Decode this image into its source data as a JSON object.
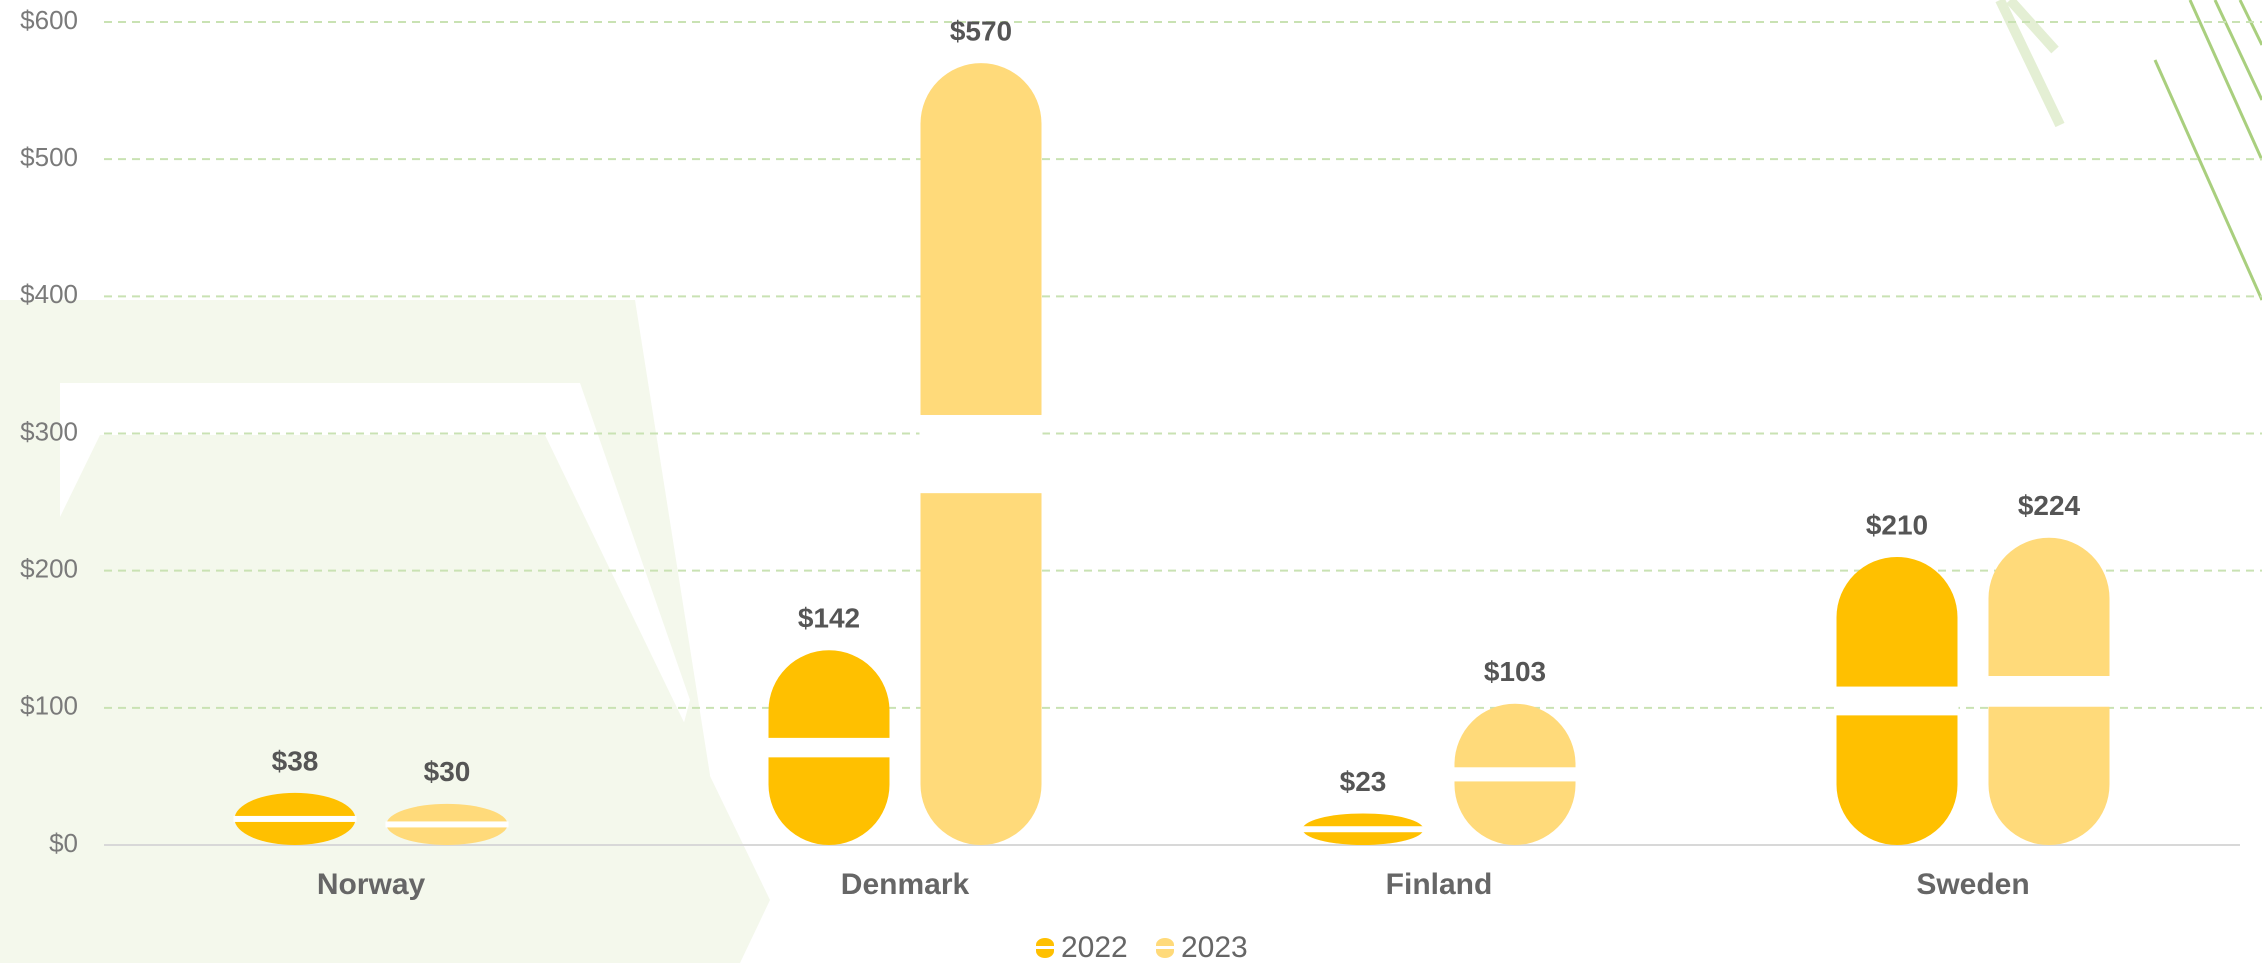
{
  "chart_data": {
    "type": "bar",
    "categories": [
      "Norway",
      "Denmark",
      "Finland",
      "Sweden"
    ],
    "series": [
      {
        "name": "2022",
        "color": "#ffc000",
        "values": [
          38,
          142,
          23,
          210
        ],
        "value_labels": [
          "$38",
          "$142",
          "$23",
          "$210"
        ]
      },
      {
        "name": "2023",
        "color": "#ffda7a",
        "values": [
          30,
          570,
          103,
          224
        ],
        "value_labels": [
          "$30",
          "$570",
          "$103",
          "$224"
        ]
      }
    ],
    "ylim": [
      0,
      600
    ],
    "yticks": [
      {
        "value": 0,
        "label": "$0"
      },
      {
        "value": 100,
        "label": "$100"
      },
      {
        "value": 200,
        "label": "$200"
      },
      {
        "value": 300,
        "label": "$300"
      },
      {
        "value": 400,
        "label": "$400"
      },
      {
        "value": 500,
        "label": "$500"
      },
      {
        "value": 600,
        "label": "$600"
      }
    ],
    "grid": true,
    "legend": "bottom"
  }
}
